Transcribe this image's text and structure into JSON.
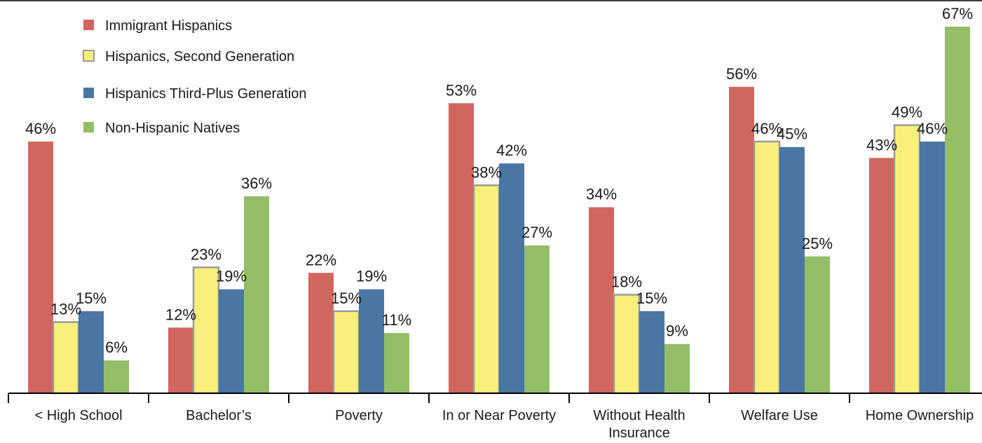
{
  "chart_data": {
    "type": "bar",
    "categories": [
      "< High School",
      "Bachelor’s",
      "Poverty",
      "In or Near Poverty",
      "Without Health Insurance",
      "Welfare Use",
      "Home Ownership"
    ],
    "series": [
      {
        "name": "Immigrant Hispanics",
        "color": "#d1665e",
        "values": [
          46,
          12,
          22,
          53,
          34,
          56,
          43
        ]
      },
      {
        "name": "Hispanics, Second Generation",
        "color": "#f8f07a",
        "values": [
          13,
          23,
          15,
          38,
          18,
          46,
          49
        ]
      },
      {
        "name": "Hispanics Third-Plus Generation",
        "color": "#4a76a4",
        "values": [
          15,
          19,
          19,
          42,
          15,
          45,
          46
        ]
      },
      {
        "name": "Non-Hispanic Natives",
        "color": "#93bd67",
        "values": [
          6,
          36,
          11,
          27,
          9,
          25,
          67
        ]
      }
    ],
    "value_suffix": "%",
    "ylim": [
      0,
      70
    ],
    "legend_position": "top-left",
    "grid": false
  }
}
